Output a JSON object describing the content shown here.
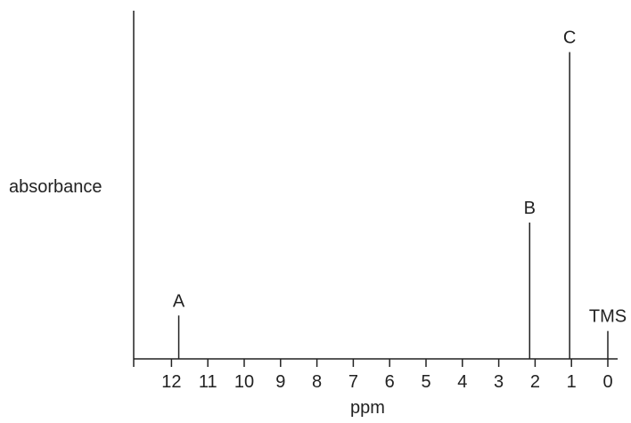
{
  "chart_data": {
    "type": "bar",
    "xlabel": "ppm",
    "ylabel": "absorbance",
    "x_reversed": true,
    "xlim": [
      13,
      0
    ],
    "ylim": [
      0,
      1
    ],
    "x_ticks": [
      "12",
      "11",
      "10",
      "9",
      "8",
      "7",
      "6",
      "5",
      "4",
      "3",
      "2",
      "1",
      "0"
    ],
    "peaks": [
      {
        "label": "A",
        "ppm": 11.8,
        "absorbance": 0.14
      },
      {
        "label": "B",
        "ppm": 2.15,
        "absorbance": 0.44
      },
      {
        "label": "C",
        "ppm": 1.05,
        "absorbance": 0.99
      },
      {
        "label": "TMS",
        "ppm": 0.0,
        "absorbance": 0.09
      }
    ],
    "grid": false
  }
}
